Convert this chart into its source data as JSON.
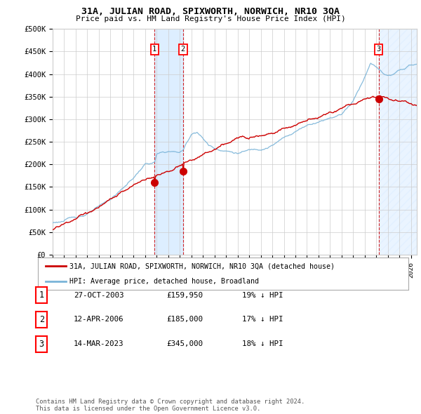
{
  "title": "31A, JULIAN ROAD, SPIXWORTH, NORWICH, NR10 3QA",
  "subtitle": "Price paid vs. HM Land Registry's House Price Index (HPI)",
  "ylabel_ticks": [
    "£0",
    "£50K",
    "£100K",
    "£150K",
    "£200K",
    "£250K",
    "£300K",
    "£350K",
    "£400K",
    "£450K",
    "£500K"
  ],
  "ytick_values": [
    0,
    50000,
    100000,
    150000,
    200000,
    250000,
    300000,
    350000,
    400000,
    450000,
    500000
  ],
  "ylim": [
    0,
    500000
  ],
  "xlim_start": 1995.0,
  "xlim_end": 2026.5,
  "sale_years": [
    2003.82,
    2006.28,
    2023.2
  ],
  "sale_prices": [
    159950,
    185000,
    345000
  ],
  "sale_labels": [
    "1",
    "2",
    "3"
  ],
  "hpi_color": "#7ab4d8",
  "price_color": "#cc0000",
  "shade_color": "#ddeeff",
  "vline_color": "#cc0000",
  "legend_label_price": "31A, JULIAN ROAD, SPIXWORTH, NORWICH, NR10 3QA (detached house)",
  "legend_label_hpi": "HPI: Average price, detached house, Broadland",
  "table_rows": [
    [
      "1",
      "27-OCT-2003",
      "£159,950",
      "19% ↓ HPI"
    ],
    [
      "2",
      "12-APR-2006",
      "£185,000",
      "17% ↓ HPI"
    ],
    [
      "3",
      "14-MAR-2023",
      "£345,000",
      "18% ↓ HPI"
    ]
  ],
  "footnote": "Contains HM Land Registry data © Crown copyright and database right 2024.\nThis data is licensed under the Open Government Licence v3.0.",
  "background_color": "#ffffff",
  "grid_color": "#cccccc"
}
